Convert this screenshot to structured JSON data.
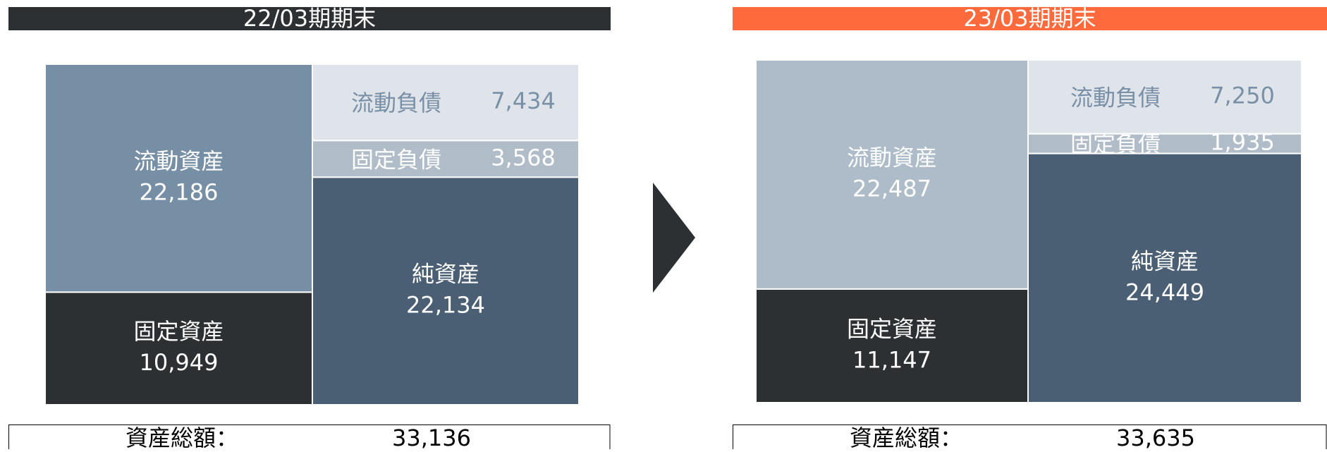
{
  "panels": [
    {
      "title": "22/03期期末",
      "header_color": "#2d3033",
      "assets": [
        {
          "name": "流動資産",
          "value": 22186,
          "value_label": "22,186",
          "color": "#778fa5"
        },
        {
          "name": "固定資産",
          "value": 10949,
          "value_label": "10,949",
          "color": "#2d3033"
        }
      ],
      "liabilities": [
        {
          "name": "流動負債",
          "value": 7434,
          "value_label": "7,434",
          "color": "#dfe4eb"
        },
        {
          "name": "固定負債",
          "value": 3568,
          "value_label": "3,568",
          "color": "#b0bdc9"
        },
        {
          "name": "純資産",
          "value": 22134,
          "value_label": "22,134",
          "color": "#4a5e74"
        }
      ],
      "total_label": "資産総額：",
      "total": 33136,
      "total_value_label": "33,136"
    },
    {
      "title": "23/03期期末",
      "header_color": "#ff6a3d",
      "assets": [
        {
          "name": "流動資産",
          "value": 22487,
          "value_label": "22,487",
          "color": "#adbcc8"
        },
        {
          "name": "固定資産",
          "value": 11147,
          "value_label": "11,147",
          "color": "#2d3033"
        }
      ],
      "liabilities": [
        {
          "name": "流動負債",
          "value": 7250,
          "value_label": "7,250",
          "color": "#dfe4eb"
        },
        {
          "name": "固定負債",
          "value": 1935,
          "value_label": "1,935",
          "color": "#b0bdc9"
        },
        {
          "name": "純資産",
          "value": 24449,
          "value_label": "24,449",
          "color": "#4a5e74"
        }
      ],
      "total_label": "資産総額：",
      "total": 33635,
      "total_value_label": "33,635"
    }
  ]
}
